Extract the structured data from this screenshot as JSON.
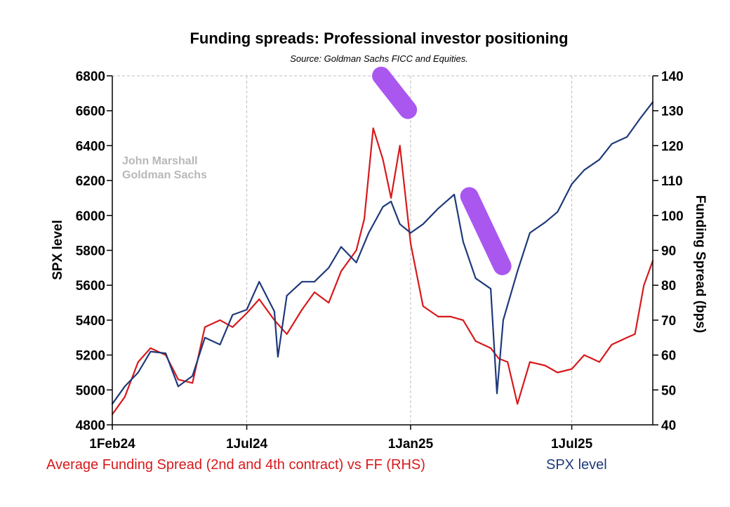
{
  "colors": {
    "funding": "#d7191c",
    "spx": "#1f3a7a",
    "highlight": "#a64ff0",
    "grid": "#bdbdbd",
    "watermark": "#b8b8b8"
  },
  "chart_data": {
    "type": "line",
    "title": "Funding spreads: Professional investor positioning",
    "subtitle": "Source: Goldman Sachs FICC and Equities.",
    "watermark": [
      "John Marshall",
      "Goldman Sachs"
    ],
    "ylabel_left": "SPX level",
    "ylabel_right": "Funding Spread (bps)",
    "x_ticks": [
      "1Feb24",
      "1Jul24",
      "1Jan25",
      "1Jul25"
    ],
    "x_tick_dates": [
      "2024-02-01",
      "2024-07-01",
      "2025-01-01",
      "2025-07-01"
    ],
    "x_range": [
      "2024-02-01",
      "2025-09-30"
    ],
    "ylim_left": [
      4800,
      6800
    ],
    "yticks_left": [
      4800,
      5000,
      5200,
      5400,
      5600,
      5800,
      6000,
      6200,
      6400,
      6600,
      6800
    ],
    "ylim_right": [
      40,
      140
    ],
    "yticks_right": [
      40,
      50,
      60,
      70,
      80,
      90,
      100,
      110,
      120,
      130,
      140
    ],
    "grid": "dashed vertical and top",
    "legend_position": "bottom",
    "series": [
      {
        "name": "Average Funding Spread (2nd and 4th contract) vs FF (RHS)",
        "axis": "right",
        "x": [
          "2024-02-01",
          "2024-02-15",
          "2024-03-01",
          "2024-03-15",
          "2024-04-01",
          "2024-04-15",
          "2024-05-01",
          "2024-05-15",
          "2024-06-01",
          "2024-06-15",
          "2024-07-01",
          "2024-07-15",
          "2024-08-01",
          "2024-08-15",
          "2024-09-01",
          "2024-09-15",
          "2024-10-01",
          "2024-10-15",
          "2024-11-01",
          "2024-11-10",
          "2024-11-20",
          "2024-12-01",
          "2024-12-10",
          "2024-12-20",
          "2025-01-01",
          "2025-01-15",
          "2025-02-01",
          "2025-02-15",
          "2025-03-01",
          "2025-03-15",
          "2025-04-01",
          "2025-04-10",
          "2025-04-20",
          "2025-05-01",
          "2025-05-15",
          "2025-06-01",
          "2025-06-15",
          "2025-07-01",
          "2025-07-15",
          "2025-08-01",
          "2025-08-15",
          "2025-09-01",
          "2025-09-10",
          "2025-09-20",
          "2025-09-30"
        ],
        "values": [
          43,
          48,
          58,
          62,
          60,
          53,
          52,
          68,
          70,
          68,
          72,
          76,
          70,
          66,
          73,
          78,
          75,
          84,
          90,
          99,
          125,
          116,
          105,
          120,
          92,
          74,
          71,
          71,
          70,
          64,
          62,
          59,
          58,
          46,
          58,
          57,
          55,
          56,
          60,
          58,
          63,
          65,
          66,
          80,
          87
        ]
      },
      {
        "name": "SPX level",
        "axis": "left",
        "x": [
          "2024-02-01",
          "2024-02-15",
          "2024-03-01",
          "2024-03-15",
          "2024-04-01",
          "2024-04-15",
          "2024-05-01",
          "2024-05-15",
          "2024-06-01",
          "2024-06-15",
          "2024-07-01",
          "2024-07-15",
          "2024-08-01",
          "2024-08-05",
          "2024-08-15",
          "2024-09-01",
          "2024-09-15",
          "2024-10-01",
          "2024-10-15",
          "2024-11-01",
          "2024-11-15",
          "2024-12-01",
          "2024-12-10",
          "2024-12-20",
          "2025-01-01",
          "2025-01-15",
          "2025-02-01",
          "2025-02-19",
          "2025-03-01",
          "2025-03-15",
          "2025-04-01",
          "2025-04-08",
          "2025-04-15",
          "2025-05-01",
          "2025-05-15",
          "2025-06-01",
          "2025-06-15",
          "2025-07-01",
          "2025-07-15",
          "2025-08-01",
          "2025-08-15",
          "2025-09-01",
          "2025-09-15",
          "2025-09-30"
        ],
        "values": [
          4920,
          5020,
          5100,
          5220,
          5210,
          5020,
          5080,
          5300,
          5260,
          5430,
          5460,
          5620,
          5450,
          5190,
          5540,
          5620,
          5620,
          5700,
          5820,
          5730,
          5900,
          6050,
          6080,
          5950,
          5900,
          5950,
          6040,
          6120,
          5850,
          5640,
          5580,
          4980,
          5400,
          5680,
          5900,
          5960,
          6020,
          6180,
          6260,
          6320,
          6410,
          6450,
          6550,
          6650
        ]
      }
    ]
  },
  "legend": {
    "funding_label": "Average Funding Spread (2nd and 4th contract) vs FF (RHS)",
    "spx_label": "SPX level"
  },
  "annotations": {
    "highlight_strokes": [
      {
        "start_date": "2024-11-29",
        "start_value": 6800,
        "end_date": "2024-12-29",
        "end_value": 6605
      },
      {
        "start_date": "2025-03-08",
        "start_value": 6110,
        "end_date": "2025-04-14",
        "end_value": 5710
      }
    ]
  }
}
